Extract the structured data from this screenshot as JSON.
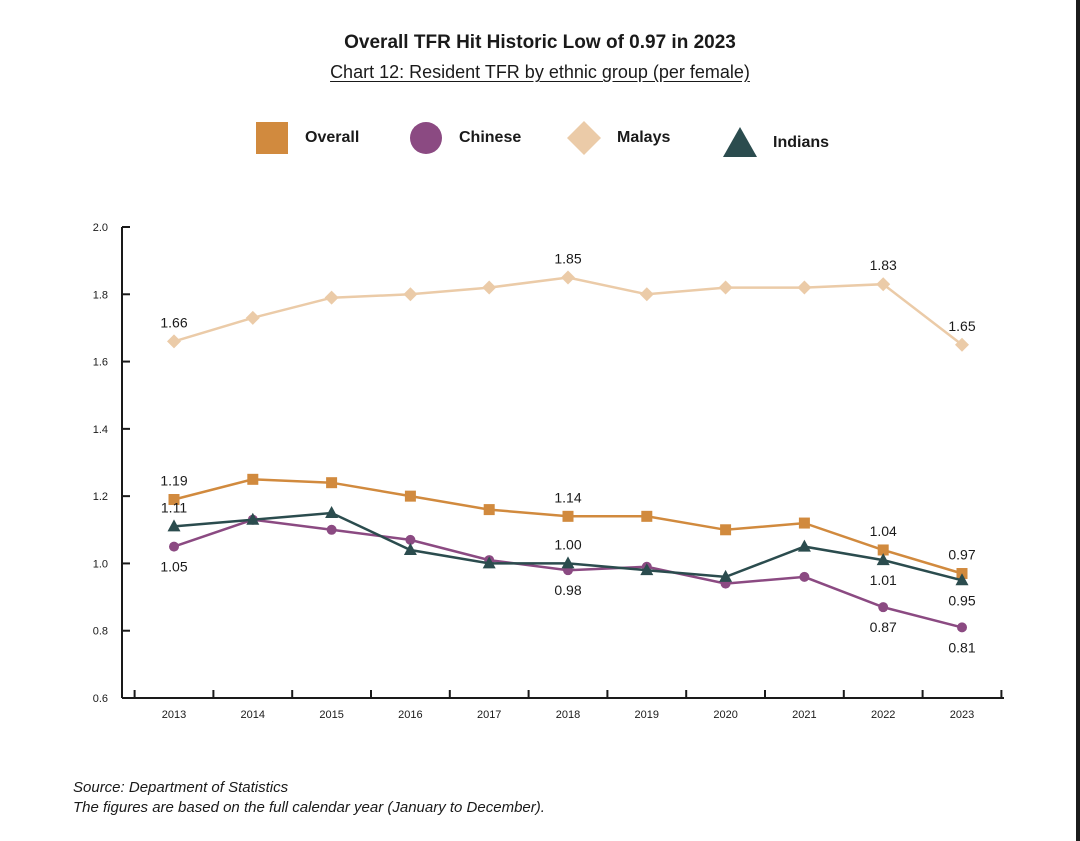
{
  "header": {
    "title": "Overall TFR Hit Historic Low of 0.97 in 2023",
    "subtitle": "Chart 12: Resident TFR by ethnic group (per female)"
  },
  "legend": [
    {
      "label": "Overall",
      "marker": "square",
      "color": "#D18A3E"
    },
    {
      "label": "Chinese",
      "marker": "circle",
      "color": "#8B4A82"
    },
    {
      "label": "Malays",
      "marker": "diamond",
      "color": "#EBCBA8"
    },
    {
      "label": "Indians",
      "marker": "triangle",
      "color": "#2B4C4E"
    }
  ],
  "footer": {
    "source": "Source: Department of Statistics",
    "note": "The figures are based on the full calendar year (January to December)."
  },
  "chart_data": {
    "type": "line",
    "title": "Overall TFR Hit Historic Low of 0.97 in 2023",
    "subtitle": "Chart 12: Resident TFR by ethnic group (per female)",
    "xlabel": "",
    "ylabel": "",
    "x": [
      "2013",
      "2014",
      "2015",
      "2016",
      "2017",
      "2018",
      "2019",
      "2020",
      "2021",
      "2022",
      "2023"
    ],
    "ylim": [
      0.6,
      2.0
    ],
    "yticks": [
      "0.6",
      "0.8",
      "1.0",
      "1.2",
      "1.4",
      "1.6",
      "1.8",
      "2.0"
    ],
    "grid": false,
    "legend_position": "top",
    "series": [
      {
        "name": "Malays",
        "marker": "diamond",
        "color": "#EBCBA8",
        "values": [
          1.66,
          1.73,
          1.79,
          1.8,
          1.82,
          1.85,
          1.8,
          1.82,
          1.82,
          1.83,
          1.65
        ],
        "labels": [
          {
            "index": 0,
            "text": "1.66",
            "pos": "above"
          },
          {
            "index": 5,
            "text": "1.85",
            "pos": "above"
          },
          {
            "index": 9,
            "text": "1.83",
            "pos": "above"
          },
          {
            "index": 10,
            "text": "1.65",
            "pos": "above"
          }
        ]
      },
      {
        "name": "Overall",
        "marker": "square",
        "color": "#D18A3E",
        "values": [
          1.19,
          1.25,
          1.24,
          1.2,
          1.16,
          1.14,
          1.14,
          1.1,
          1.12,
          1.04,
          0.97
        ],
        "labels": [
          {
            "index": 0,
            "text": "1.19",
            "pos": "above"
          },
          {
            "index": 5,
            "text": "1.14",
            "pos": "above"
          },
          {
            "index": 9,
            "text": "1.04",
            "pos": "above"
          },
          {
            "index": 10,
            "text": "0.97",
            "pos": "above"
          }
        ]
      },
      {
        "name": "Chinese",
        "marker": "circle",
        "color": "#8B4A82",
        "values": [
          1.05,
          1.13,
          1.1,
          1.07,
          1.01,
          0.98,
          0.99,
          0.94,
          0.96,
          0.87,
          0.81
        ],
        "labels": [
          {
            "index": 0,
            "text": "1.05",
            "pos": "below"
          },
          {
            "index": 5,
            "text": "0.98",
            "pos": "below"
          },
          {
            "index": 9,
            "text": "0.87",
            "pos": "below"
          },
          {
            "index": 10,
            "text": "0.81",
            "pos": "below"
          }
        ]
      },
      {
        "name": "Indians",
        "marker": "triangle",
        "color": "#2B4C4E",
        "values": [
          1.11,
          1.13,
          1.15,
          1.04,
          1.0,
          1.0,
          0.98,
          0.96,
          1.05,
          1.01,
          0.95
        ],
        "labels": [
          {
            "index": 0,
            "text": "1.11",
            "pos": "above"
          },
          {
            "index": 5,
            "text": "1.00",
            "pos": "above"
          },
          {
            "index": 9,
            "text": "1.01",
            "pos": "below"
          },
          {
            "index": 10,
            "text": "0.95",
            "pos": "below"
          }
        ]
      }
    ]
  }
}
